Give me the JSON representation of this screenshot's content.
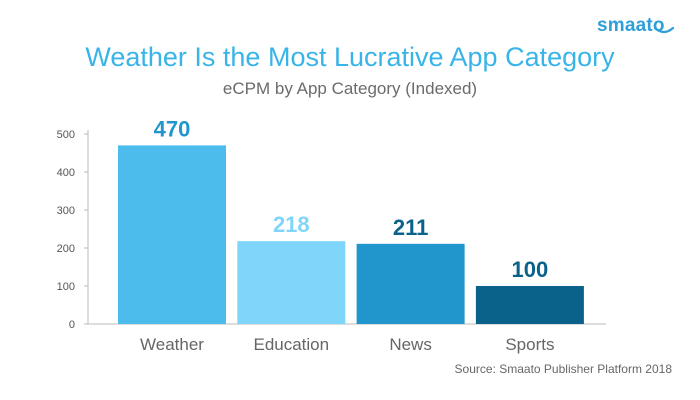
{
  "logo": {
    "text": "smaato"
  },
  "chart_data": {
    "type": "bar",
    "title": "Weather Is the Most Lucrative App Category",
    "subtitle": "eCPM by App Category (Indexed)",
    "xlabel": "",
    "ylabel": "",
    "categories": [
      "Weather",
      "Education",
      "News",
      "Sports"
    ],
    "values": [
      470,
      218,
      211,
      100
    ],
    "value_labels": [
      "470",
      "218",
      "211",
      "100"
    ],
    "ylim": [
      0,
      500
    ],
    "yticks": [
      0,
      100,
      200,
      300,
      400,
      500
    ],
    "grid": false,
    "legend": "none",
    "source": "Source:  Smaato Publisher Platform 2018"
  },
  "colors": {
    "bars": [
      "#4bbcec",
      "#80d5fb",
      "#2196cc",
      "#0a628a"
    ],
    "value_labels": [
      "#2196cc",
      "#80d5fb",
      "#0a628a",
      "#0a628a"
    ],
    "title": "#39b4e8",
    "axis": "#bbbbbb"
  }
}
